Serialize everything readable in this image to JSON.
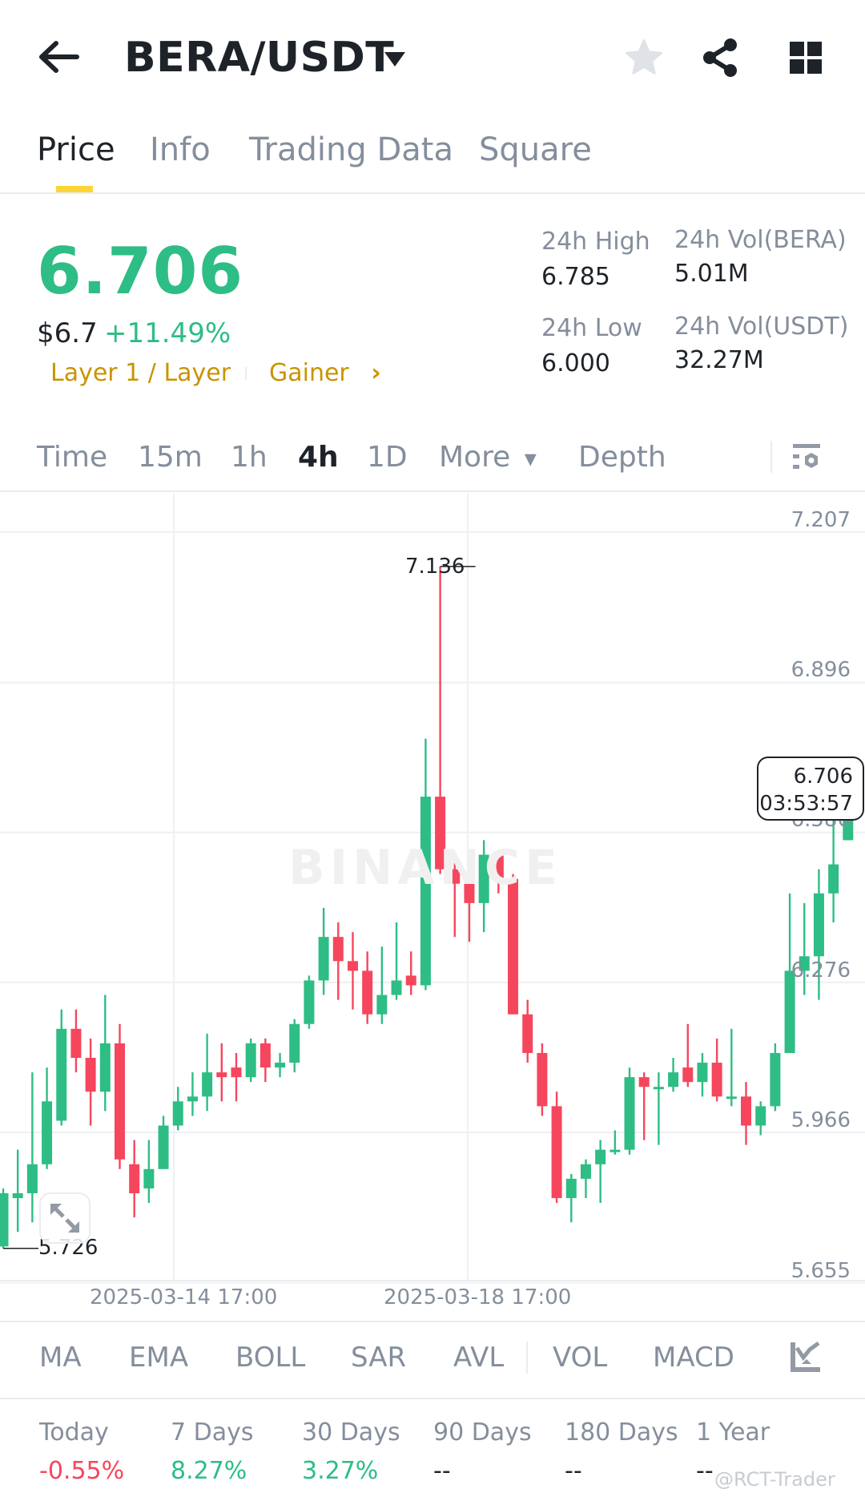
{
  "header": {
    "pair": "BERA/USDT",
    "icons": {
      "back": "arrow-left-icon",
      "caret": "caret-down-icon",
      "favorite": "star-icon",
      "share": "share-icon",
      "more": "grid-icon"
    }
  },
  "tabs": [
    {
      "label": "Price",
      "active": true
    },
    {
      "label": "Info",
      "active": false
    },
    {
      "label": "Trading Data",
      "active": false
    },
    {
      "label": "Square",
      "active": false
    }
  ],
  "ticker": {
    "last_price": "6.706",
    "usd_price": "$6.7",
    "change_pct": "+11.49%",
    "tags": [
      "Layer 1 / Layer",
      "Gainer"
    ],
    "tag_arrow": "›",
    "stats": {
      "high_label": "24h High",
      "high_value": "6.785",
      "low_label": "24h Low",
      "low_value": "6.000",
      "vol_base_label": "24h Vol(BERA)",
      "vol_base_value": "5.01M",
      "vol_quote_label": "24h Vol(USDT)",
      "vol_quote_value": "32.27M"
    },
    "colors": {
      "up": "#2ebd85",
      "down": "#f6465d",
      "tag": "#c99400"
    }
  },
  "intervals": {
    "items": [
      {
        "label": "Time",
        "active": false
      },
      {
        "label": "15m",
        "active": false
      },
      {
        "label": "1h",
        "active": false
      },
      {
        "label": "4h",
        "active": true
      },
      {
        "label": "1D",
        "active": false
      },
      {
        "label": "More",
        "active": false
      },
      {
        "label": "Depth",
        "active": false
      }
    ],
    "more_caret": "▾"
  },
  "chart_data": {
    "type": "candlestick",
    "title": "BERA/USDT 4h",
    "watermark": "BINANCE",
    "y_ticks": [
      "7.207",
      "6.896",
      "6.586",
      "6.276",
      "5.966",
      "5.655"
    ],
    "ylim": [
      5.655,
      7.207
    ],
    "x_ticks": [
      "2025-03-14 17:00",
      "2025-03-18 17:00"
    ],
    "grid": true,
    "max_marker": "7.136",
    "min_marker": "5.726",
    "current_price": "6.706",
    "countdown": "03:53:57",
    "candles": [
      [
        5.73,
        5.84,
        5.85,
        5.726
      ],
      [
        5.83,
        5.84,
        5.93,
        5.76
      ],
      [
        5.84,
        5.9,
        6.09,
        5.78
      ],
      [
        5.9,
        6.03,
        6.1,
        5.89
      ],
      [
        5.99,
        6.18,
        6.22,
        5.98
      ],
      [
        6.18,
        6.12,
        6.22,
        6.09
      ],
      [
        6.12,
        6.05,
        6.16,
        5.98
      ],
      [
        6.05,
        6.15,
        6.25,
        6.01
      ],
      [
        6.15,
        5.91,
        6.19,
        5.89
      ],
      [
        5.9,
        5.84,
        5.95,
        5.79
      ],
      [
        5.85,
        5.89,
        5.95,
        5.82
      ],
      [
        5.89,
        5.98,
        6.0,
        5.89
      ],
      [
        5.98,
        6.03,
        6.06,
        5.97
      ],
      [
        6.03,
        6.04,
        6.09,
        6.0
      ],
      [
        6.04,
        6.09,
        6.17,
        6.01
      ],
      [
        6.09,
        6.08,
        6.15,
        6.03
      ],
      [
        6.1,
        6.08,
        6.13,
        6.03
      ],
      [
        6.08,
        6.15,
        6.16,
        6.07
      ],
      [
        6.15,
        6.1,
        6.16,
        6.07
      ],
      [
        6.1,
        6.11,
        6.13,
        6.08
      ],
      [
        6.11,
        6.19,
        6.2,
        6.09
      ],
      [
        6.19,
        6.28,
        6.29,
        6.18
      ],
      [
        6.28,
        6.37,
        6.43,
        6.25
      ],
      [
        6.37,
        6.32,
        6.4,
        6.24
      ],
      [
        6.32,
        6.3,
        6.38,
        6.22
      ],
      [
        6.3,
        6.21,
        6.34,
        6.19
      ],
      [
        6.21,
        6.25,
        6.35,
        6.19
      ],
      [
        6.25,
        6.28,
        6.4,
        6.24
      ],
      [
        6.29,
        6.27,
        6.34,
        6.25
      ],
      [
        6.27,
        6.66,
        6.78,
        6.26
      ],
      [
        6.66,
        6.51,
        7.136,
        6.5
      ],
      [
        6.51,
        6.48,
        6.54,
        6.37
      ],
      [
        6.48,
        6.44,
        6.51,
        6.36
      ],
      [
        6.44,
        6.54,
        6.57,
        6.38
      ],
      [
        6.54,
        6.49,
        6.55,
        6.46
      ],
      [
        6.49,
        6.21,
        6.5,
        6.21
      ],
      [
        6.21,
        6.13,
        6.24,
        6.11
      ],
      [
        6.13,
        6.02,
        6.15,
        6.0
      ],
      [
        6.02,
        5.83,
        6.05,
        5.82
      ],
      [
        5.83,
        5.87,
        5.88,
        5.78
      ],
      [
        5.87,
        5.9,
        5.91,
        5.83
      ],
      [
        5.9,
        5.93,
        5.95,
        5.82
      ],
      [
        5.93,
        5.93,
        5.97,
        5.92
      ],
      [
        5.93,
        6.08,
        6.1,
        5.92
      ],
      [
        6.08,
        6.06,
        6.09,
        5.95
      ],
      [
        6.06,
        6.06,
        6.09,
        5.94
      ],
      [
        6.06,
        6.09,
        6.12,
        6.05
      ],
      [
        6.1,
        6.07,
        6.19,
        6.06
      ],
      [
        6.07,
        6.11,
        6.13,
        6.04
      ],
      [
        6.11,
        6.04,
        6.16,
        6.03
      ],
      [
        6.04,
        6.04,
        6.18,
        6.02
      ],
      [
        6.04,
        5.98,
        6.07,
        5.94
      ],
      [
        5.98,
        6.02,
        6.03,
        5.96
      ],
      [
        6.02,
        6.13,
        6.15,
        6.01
      ],
      [
        6.13,
        6.3,
        6.46,
        6.13
      ],
      [
        6.3,
        6.33,
        6.44,
        6.25
      ],
      [
        6.33,
        6.46,
        6.51,
        6.24
      ],
      [
        6.46,
        6.52,
        6.63,
        6.4
      ],
      [
        6.57,
        6.706,
        6.74,
        6.57
      ]
    ],
    "candle_format": [
      "open",
      "close",
      "high",
      "low"
    ]
  },
  "indicators": {
    "items": [
      "MA",
      "EMA",
      "BOLL",
      "SAR",
      "AVL",
      "VOL",
      "MACD"
    ],
    "more_icon": "indicator-chart-icon"
  },
  "performance": [
    {
      "label": "Today",
      "value": "-0.55%",
      "dir": "down"
    },
    {
      "label": "7 Days",
      "value": "8.27%",
      "dir": "up"
    },
    {
      "label": "30 Days",
      "value": "3.27%",
      "dir": "up"
    },
    {
      "label": "90 Days",
      "value": "--",
      "dir": "none"
    },
    {
      "label": "180 Days",
      "value": "--",
      "dir": "none"
    },
    {
      "label": "1 Year",
      "value": "--",
      "dir": "none"
    }
  ],
  "credit": "@RCT-Trader"
}
